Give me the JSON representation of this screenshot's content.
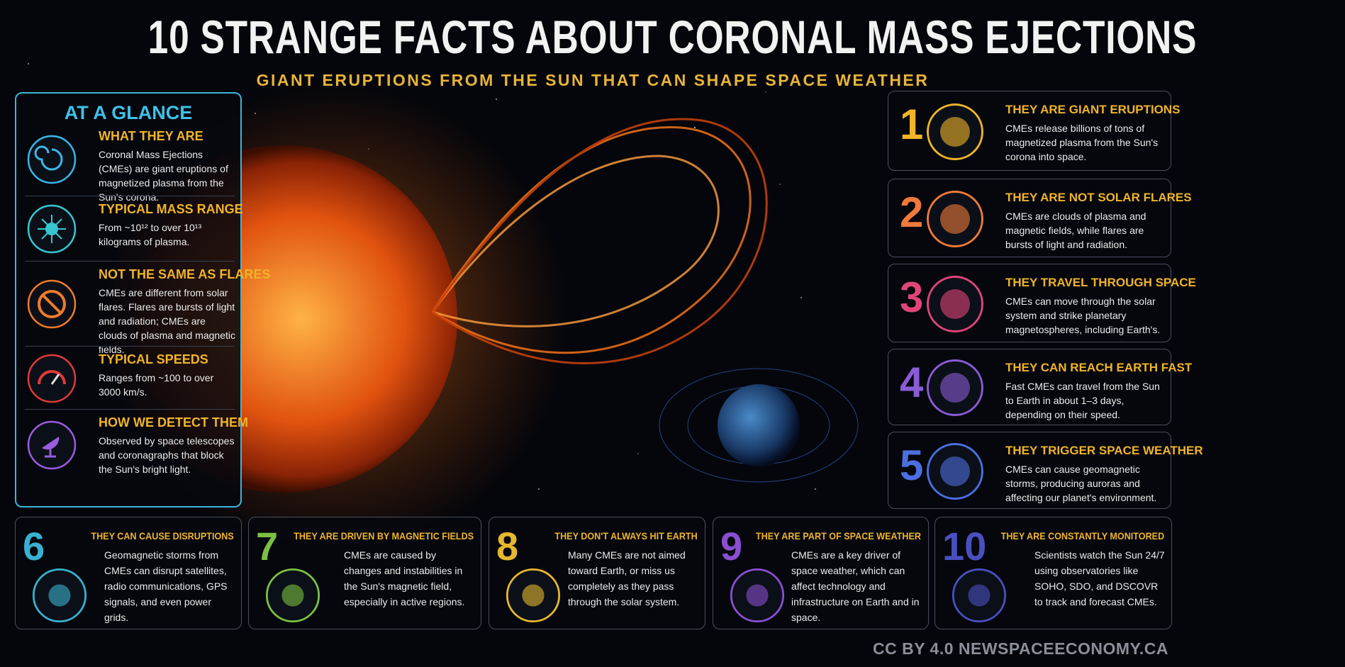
{
  "title": "10 STRANGE FACTS ABOUT CORONAL MASS EJECTIONS",
  "subtitle": "GIANT ERUPTIONS FROM THE SUN THAT CAN SHAPE SPACE WEATHER",
  "glance": {
    "title": "AT A GLANCE",
    "items": [
      {
        "heading": "WHAT THEY ARE",
        "text": "Coronal Mass Ejections (CMEs) are giant eruptions of magnetized plasma from the Sun's corona."
      },
      {
        "heading": "TYPICAL MASS RANGE",
        "text": "From ~10¹² to over 10¹³ kilograms of plasma."
      },
      {
        "heading": "NOT THE SAME AS FLARES",
        "text": "CMEs are different from solar flares. Flares are bursts of light and radiation; CMEs are clouds of plasma and magnetic fields."
      },
      {
        "heading": "TYPICAL SPEEDS",
        "text": "Ranges from ~100 to over 3000 km/s."
      },
      {
        "heading": "HOW WE DETECT THEM",
        "text": "Observed by space telescopes and coronagraphs that block the Sun's bright light."
      }
    ]
  },
  "facts": [
    {
      "number": 1,
      "heading": "THEY ARE GIANT ERUPTIONS",
      "text": "CMEs release billions of tons of magnetized plasma from the Sun's corona into space."
    },
    {
      "number": 2,
      "heading": "THEY ARE NOT SOLAR FLARES",
      "text": "CMEs are clouds of plasma and magnetic fields, while flares are bursts of light and radiation."
    },
    {
      "number": 3,
      "heading": "THEY TRAVEL THROUGH SPACE",
      "text": "CMEs can move through the solar system and strike planetary magnetospheres, including Earth's."
    },
    {
      "number": 4,
      "heading": "THEY CAN REACH EARTH FAST",
      "text": "Fast CMEs can travel from the Sun to Earth in about 1–3 days, depending on their speed."
    },
    {
      "number": 5,
      "heading": "THEY TRIGGER SPACE WEATHER",
      "text": "CMEs can cause geomagnetic storms, producing auroras and affecting our planet's environment."
    },
    {
      "number": 6,
      "heading": "THEY CAN CAUSE DISRUPTIONS",
      "text": "Geomagnetic storms from CMEs can disrupt satellites, radio communications, GPS signals, and even power grids."
    },
    {
      "number": 7,
      "heading": "THEY ARE DRIVEN BY MAGNETIC FIELDS",
      "text": "CMEs are caused by changes and instabilities in the Sun's magnetic field, especially in active regions."
    },
    {
      "number": 8,
      "heading": "THEY DON'T ALWAYS HIT EARTH",
      "text": "Many CMEs are not aimed toward Earth, or miss us completely as they pass through the solar system."
    },
    {
      "number": 9,
      "heading": "THEY ARE PART OF SPACE WEATHER",
      "text": "CMEs are a key driver of space weather, which can affect technology and infrastructure on Earth and in space."
    },
    {
      "number": 10,
      "heading": "THEY ARE CONSTANTLY MONITORED",
      "text": "Scientists watch the Sun 24/7 using observatories like SOHO, SDO, and DSCOVR to track and forecast CMEs."
    }
  ],
  "credit": "CC BY 4.0 NEWSPACEECONOMY.CA"
}
